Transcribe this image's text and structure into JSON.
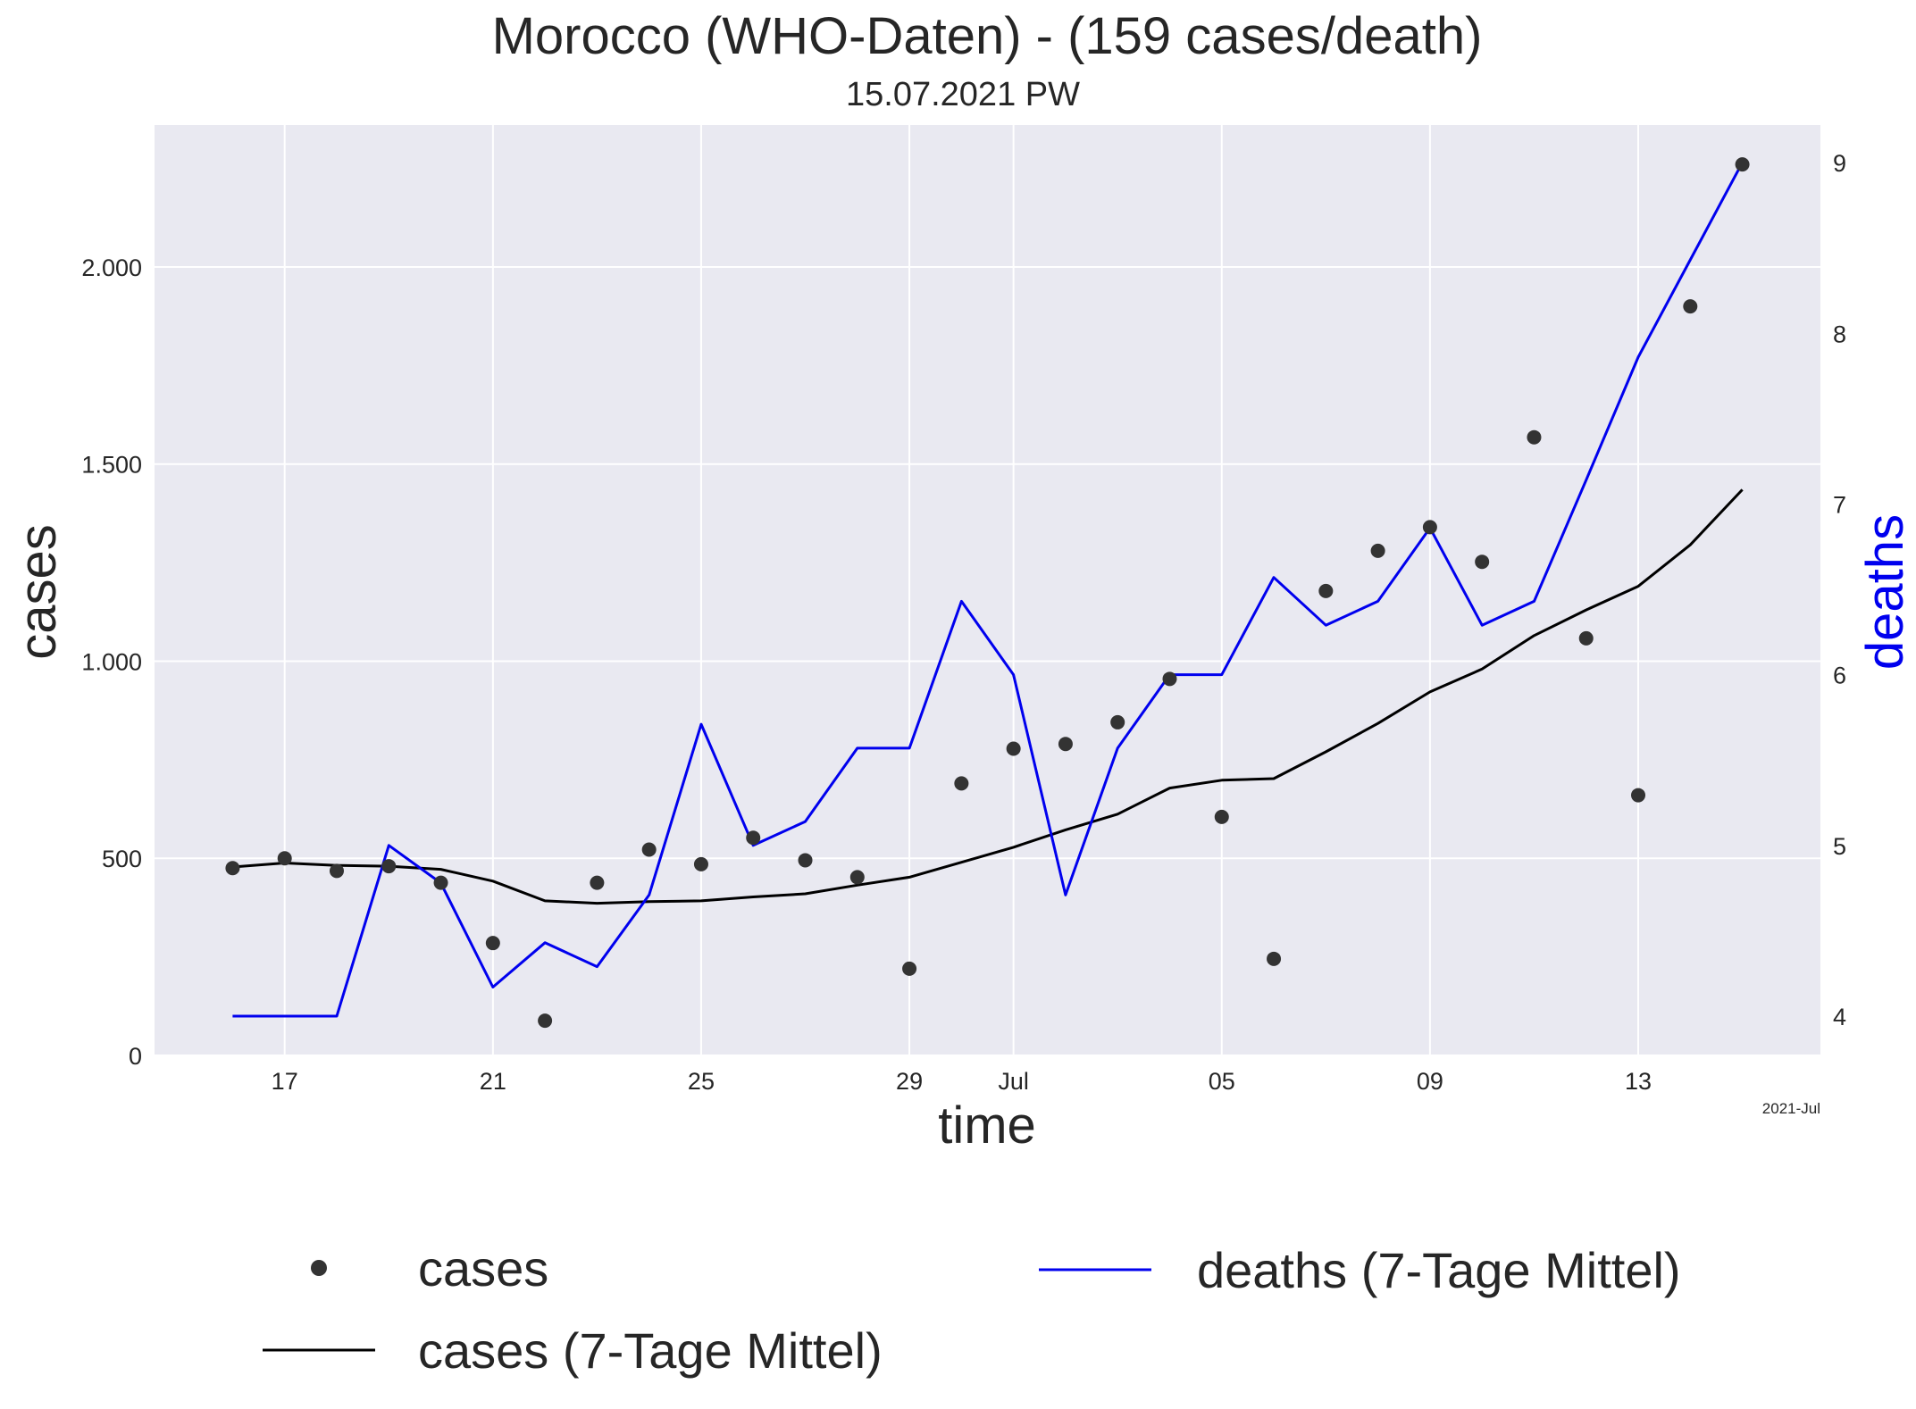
{
  "chart_data": {
    "type": "line",
    "title": "Morocco (WHO-Daten) - (159 cases/death)",
    "subtitle": "15.07.2021 PW",
    "xlabel": "time",
    "ylabel": "cases",
    "ylabel_right": "deaths",
    "x_offset_label": "2021-Jul",
    "x": [
      "2021-06-16",
      "2021-06-17",
      "2021-06-18",
      "2021-06-19",
      "2021-06-20",
      "2021-06-21",
      "2021-06-22",
      "2021-06-23",
      "2021-06-24",
      "2021-06-25",
      "2021-06-26",
      "2021-06-27",
      "2021-06-28",
      "2021-06-29",
      "2021-06-30",
      "2021-07-01",
      "2021-07-02",
      "2021-07-03",
      "2021-07-04",
      "2021-07-05",
      "2021-07-06",
      "2021-07-07",
      "2021-07-08",
      "2021-07-09",
      "2021-07-10",
      "2021-07-11",
      "2021-07-12",
      "2021-07-13",
      "2021-07-14",
      "2021-07-15"
    ],
    "xlim": [
      "2021-06-14T12:00",
      "2021-07-16T12:00"
    ],
    "xticks": [
      {
        "date": "2021-06-17",
        "label": "17"
      },
      {
        "date": "2021-06-21",
        "label": "21"
      },
      {
        "date": "2021-06-25",
        "label": "25"
      },
      {
        "date": "2021-06-29",
        "label": "29"
      },
      {
        "date": "2021-07-01",
        "label": "Jul"
      },
      {
        "date": "2021-07-05",
        "label": "05"
      },
      {
        "date": "2021-07-09",
        "label": "09"
      },
      {
        "date": "2021-07-13",
        "label": "13"
      }
    ],
    "ylim": [
      0,
      2360
    ],
    "yticks": [
      {
        "value": 0,
        "label": "0"
      },
      {
        "value": 500,
        "label": "500"
      },
      {
        "value": 1000,
        "label": "1.000"
      },
      {
        "value": 1500,
        "label": "1.500"
      },
      {
        "value": 2000,
        "label": "2.000"
      }
    ],
    "ylim_right": [
      3.77,
      9.22
    ],
    "yticks_right": [
      {
        "value": 4,
        "label": "4"
      },
      {
        "value": 5,
        "label": "5"
      },
      {
        "value": 6,
        "label": "6"
      },
      {
        "value": 7,
        "label": "7"
      },
      {
        "value": 8,
        "label": "8"
      },
      {
        "value": 9,
        "label": "9"
      }
    ],
    "grid": true,
    "legend_position": "bottom",
    "series": [
      {
        "name": "cases",
        "style": "dots",
        "axis": "left",
        "color": "#333333",
        "values": [
          475,
          500,
          468,
          480,
          438,
          285,
          88,
          438,
          522,
          485,
          552,
          495,
          452,
          220,
          690,
          778,
          790,
          845,
          955,
          605,
          245,
          1178,
          1280,
          1340,
          1252,
          1568,
          1058,
          660,
          1900,
          2260
        ]
      },
      {
        "name": "cases (7-Tage Mittel)",
        "style": "line",
        "axis": "left",
        "color": "#000000",
        "values": [
          478,
          488,
          482,
          480,
          472,
          442,
          392,
          386,
          390,
          392,
          402,
          410,
          432,
          452,
          490,
          528,
          572,
          612,
          678,
          698,
          702,
          770,
          842,
          922,
          980,
          1065,
          1130,
          1190,
          1295,
          1435
        ]
      },
      {
        "name": "deaths (7-Tage Mittel)",
        "style": "line",
        "axis": "right",
        "color": "#0000ee",
        "values": [
          4.0,
          4.0,
          4.0,
          5.0,
          4.78,
          4.17,
          4.43,
          4.29,
          4.71,
          5.71,
          5.0,
          5.14,
          5.57,
          5.57,
          6.43,
          6.0,
          4.71,
          5.57,
          6.0,
          6.0,
          6.57,
          6.29,
          6.43,
          6.86,
          6.29,
          6.43,
          7.14,
          7.86,
          8.43,
          9.0
        ]
      }
    ]
  },
  "colors": {
    "plot_background": "#e9e9f1",
    "grid": "#ffffff",
    "text": "#262626",
    "deaths_axis": "#0000ee"
  }
}
